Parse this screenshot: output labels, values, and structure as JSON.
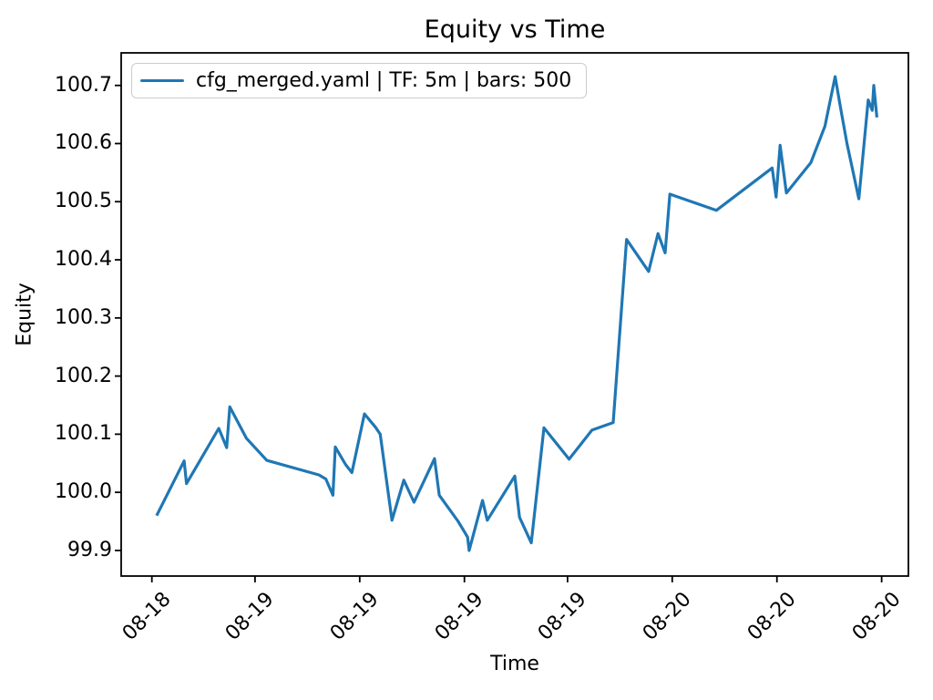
{
  "figure": {
    "background": "#ffffff"
  },
  "chart_data": {
    "type": "line",
    "title": "Equity vs Time",
    "xlabel": "Time",
    "ylabel": "Equity",
    "grid": false,
    "axis_color": "#000000",
    "tick_label_color": "#000000",
    "legend": {
      "label": "cfg_merged.yaml | TF: 5m | bars: 500",
      "position": "upper left",
      "edge_color": "#cccccc"
    },
    "ylim": [
      99.856,
      100.756
    ],
    "y_ticks": [
      {
        "label": "99.9",
        "value": 99.9
      },
      {
        "label": "100.0",
        "value": 100.0
      },
      {
        "label": "100.1",
        "value": 100.1
      },
      {
        "label": "100.2",
        "value": 100.2
      },
      {
        "label": "100.3",
        "value": 100.3
      },
      {
        "label": "100.4",
        "value": 100.4
      },
      {
        "label": "100.5",
        "value": 100.5
      },
      {
        "label": "100.6",
        "value": 100.6
      },
      {
        "label": "100.7",
        "value": 100.7
      }
    ],
    "x_ticks": [
      {
        "label": "08-18",
        "pos": 0.039
      },
      {
        "label": "08-19",
        "pos": 0.17
      },
      {
        "label": "08-19",
        "pos": 0.303
      },
      {
        "label": "08-19",
        "pos": 0.436
      },
      {
        "label": "08-19",
        "pos": 0.567
      },
      {
        "label": "08-20",
        "pos": 0.7
      },
      {
        "label": "08-20",
        "pos": 0.833
      },
      {
        "label": "08-20",
        "pos": 0.966
      }
    ],
    "x_tick_rotation_deg": 45,
    "series": [
      {
        "name": "cfg_merged.yaml | TF: 5m | bars: 500",
        "color": "#1f77b4",
        "points": [
          [
            0.045,
            99.96
          ],
          [
            0.08,
            100.054
          ],
          [
            0.083,
            100.015
          ],
          [
            0.124,
            100.11
          ],
          [
            0.134,
            100.077
          ],
          [
            0.138,
            100.147
          ],
          [
            0.159,
            100.093
          ],
          [
            0.185,
            100.055
          ],
          [
            0.251,
            100.03
          ],
          [
            0.26,
            100.023
          ],
          [
            0.269,
            99.995
          ],
          [
            0.272,
            100.078
          ],
          [
            0.285,
            100.048
          ],
          [
            0.293,
            100.034
          ],
          [
            0.309,
            100.135
          ],
          [
            0.323,
            100.112
          ],
          [
            0.329,
            100.1
          ],
          [
            0.344,
            99.952
          ],
          [
            0.359,
            100.021
          ],
          [
            0.372,
            99.983
          ],
          [
            0.398,
            100.058
          ],
          [
            0.404,
            99.995
          ],
          [
            0.428,
            99.95
          ],
          [
            0.44,
            99.923
          ],
          [
            0.442,
            99.9
          ],
          [
            0.459,
            99.986
          ],
          [
            0.465,
            99.952
          ],
          [
            0.5,
            100.028
          ],
          [
            0.506,
            99.957
          ],
          [
            0.521,
            99.913
          ],
          [
            0.537,
            100.111
          ],
          [
            0.569,
            100.057
          ],
          [
            0.598,
            100.107
          ],
          [
            0.625,
            100.12
          ],
          [
            0.642,
            100.435
          ],
          [
            0.67,
            100.38
          ],
          [
            0.682,
            100.445
          ],
          [
            0.691,
            100.412
          ],
          [
            0.697,
            100.513
          ],
          [
            0.756,
            100.485
          ],
          [
            0.827,
            100.558
          ],
          [
            0.832,
            100.508
          ],
          [
            0.837,
            100.597
          ],
          [
            0.845,
            100.515
          ],
          [
            0.876,
            100.567
          ],
          [
            0.894,
            100.63
          ],
          [
            0.907,
            100.715
          ],
          [
            0.914,
            100.66
          ],
          [
            0.922,
            100.6
          ],
          [
            0.937,
            100.505
          ],
          [
            0.949,
            100.675
          ],
          [
            0.954,
            100.657
          ],
          [
            0.956,
            100.7
          ],
          [
            0.96,
            100.645
          ]
        ]
      }
    ]
  }
}
